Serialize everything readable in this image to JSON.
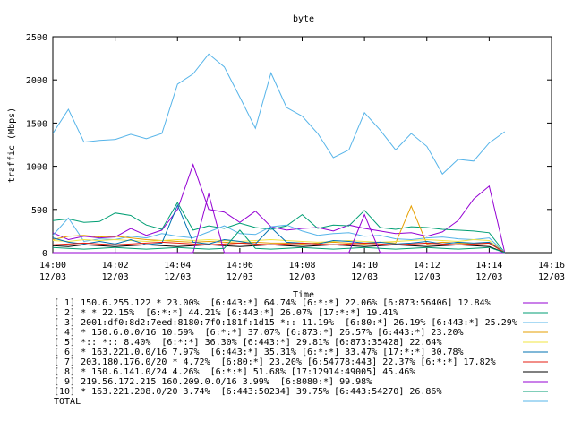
{
  "chart_data": {
    "type": "line",
    "title": "byte",
    "xlabel": "Time",
    "ylabel": "traffic (Mbps)",
    "ylim": [
      0,
      2500
    ],
    "xlim": [
      0,
      16
    ],
    "grid": false,
    "legend_position": "bottom",
    "y_ticks": [
      {
        "value": 0,
        "label": "0"
      },
      {
        "value": 500,
        "label": "500"
      },
      {
        "value": 1000,
        "label": "1000"
      },
      {
        "value": 1500,
        "label": "1500"
      },
      {
        "value": 2000,
        "label": "2000"
      },
      {
        "value": 2500,
        "label": "2500"
      }
    ],
    "x_ticks": [
      {
        "value": 0,
        "time": "14:00",
        "date": "12/03"
      },
      {
        "value": 2,
        "time": "14:02",
        "date": "12/03"
      },
      {
        "value": 4,
        "time": "14:04",
        "date": "12/03"
      },
      {
        "value": 6,
        "time": "14:06",
        "date": "12/03"
      },
      {
        "value": 8,
        "time": "14:08",
        "date": "12/03"
      },
      {
        "value": 10,
        "time": "14:10",
        "date": "12/03"
      },
      {
        "value": 12,
        "time": "14:12",
        "date": "12/03"
      },
      {
        "value": 14,
        "time": "14:14",
        "date": "12/03"
      },
      {
        "value": 16,
        "time": "14:16",
        "date": "12/03"
      }
    ],
    "x": [
      0,
      0.5,
      1,
      1.5,
      2,
      2.5,
      3,
      3.5,
      4,
      4.5,
      5,
      5.5,
      6,
      6.5,
      7,
      7.5,
      8,
      8.5,
      9,
      9.5,
      10,
      10.5,
      11,
      11.5,
      12,
      12.5,
      13,
      13.5,
      14,
      14.5
    ],
    "series": [
      {
        "name": "[ 1] 150.6.255.122 * 23.00%  [6:443:*] 64.74% [6:*:*] 22.06% [6:873:56406] 12.84%",
        "color": "#9400d3",
        "values": [
          230,
          150,
          190,
          170,
          180,
          280,
          200,
          260,
          500,
          1020,
          500,
          470,
          350,
          480,
          300,
          260,
          280,
          290,
          250,
          320,
          280,
          250,
          220,
          230,
          190,
          240,
          370,
          620,
          770,
          0
        ]
      },
      {
        "name": "[ 2] * * 22.15%  [6:*:*] 44.21% [6:443:*] 26.07% [17:*:*] 19.41%",
        "color": "#009e73",
        "values": [
          370,
          390,
          350,
          360,
          460,
          430,
          320,
          270,
          580,
          260,
          310,
          280,
          340,
          290,
          270,
          310,
          440,
          280,
          320,
          310,
          490,
          290,
          270,
          300,
          290,
          270,
          260,
          250,
          230,
          0
        ]
      },
      {
        "name": "[ 3] 2001:df0:8d2:7eed:8180:7f0:181f:1d15 *:: 11.19%  [6:80:*] 26.19% [6:443:*] 25.29%",
        "color": "#56b4e9",
        "values": [
          200,
          400,
          130,
          160,
          150,
          190,
          170,
          220,
          190,
          170,
          240,
          310,
          220,
          210,
          300,
          320,
          250,
          200,
          220,
          230,
          190,
          200,
          160,
          150,
          170,
          180,
          160,
          150,
          170,
          0
        ]
      },
      {
        "name": "[ 4] * 150.6.0.0/16 10.59%  [6:*:*] 37.07% [6:873:*] 26.57% [6:443:*] 23.20%",
        "color": "#e69f00",
        "values": [
          150,
          190,
          200,
          180,
          190,
          170,
          150,
          140,
          130,
          120,
          130,
          120,
          110,
          120,
          110,
          110,
          100,
          110,
          120,
          110,
          100,
          120,
          110,
          540,
          100,
          120,
          110,
          100,
          110,
          0
        ]
      },
      {
        "name": "[ 5] *:: *:: 8.40%  [6:*:*] 36.30% [6:443:*] 29.81% [6:873:35428] 22.64%",
        "color": "#f0e442",
        "values": [
          140,
          130,
          150,
          140,
          150,
          140,
          130,
          140,
          150,
          140,
          150,
          140,
          130,
          140,
          150,
          140,
          130,
          120,
          130,
          140,
          130,
          120,
          130,
          140,
          150,
          140,
          130,
          150,
          140,
          0
        ]
      },
      {
        "name": "[ 6] * 163.221.0.0/16 7.97%  [6:443:*] 35.31% [6:*:*] 33.47% [17:*:*] 30.78%",
        "color": "#0072b2",
        "values": [
          170,
          120,
          100,
          130,
          100,
          150,
          90,
          110,
          550,
          120,
          100,
          150,
          130,
          100,
          290,
          120,
          110,
          100,
          140,
          130,
          110,
          120,
          100,
          110,
          130,
          100,
          120,
          110,
          120,
          0
        ]
      },
      {
        "name": "[ 7] 203.180.176.0/20 * 4.72%  [6:80:*] 23.20% [6:54778:443] 22.37% [6:*:*] 17.82%",
        "color": "#e51e10",
        "values": [
          90,
          100,
          110,
          100,
          90,
          100,
          110,
          120,
          110,
          100,
          90,
          100,
          110,
          100,
          90,
          100,
          110,
          100,
          90,
          100,
          110,
          100,
          90,
          100,
          110,
          100,
          90,
          100,
          110,
          0
        ]
      },
      {
        "name": "[ 8] * 150.6.141.0/24 4.26%  [6:*:*] 51.68% [17:12914:49005] 45.46%",
        "color": "#000000",
        "values": [
          80,
          70,
          90,
          80,
          70,
          80,
          90,
          80,
          70,
          80,
          90,
          80,
          70,
          80,
          90,
          80,
          70,
          80,
          90,
          80,
          70,
          80,
          90,
          80,
          70,
          80,
          90,
          80,
          70,
          0
        ]
      },
      {
        "name": "[ 9] 219.56.172.215 160.209.0.0/16 3.99%  [6:8080:*] 99.98%",
        "color": "#9400d3",
        "values": [
          0,
          0,
          0,
          0,
          0,
          0,
          0,
          0,
          0,
          0,
          680,
          0,
          0,
          0,
          0,
          0,
          0,
          0,
          0,
          0,
          440,
          0,
          0,
          0,
          0,
          0,
          0,
          0,
          0,
          0
        ]
      },
      {
        "name": "[10] * 163.221.208.0/20 3.74%  [6:443:50234] 39.75% [6:443:54270] 26.86%",
        "color": "#009e73",
        "values": [
          60,
          50,
          40,
          50,
          60,
          50,
          40,
          50,
          60,
          50,
          40,
          50,
          260,
          50,
          40,
          50,
          60,
          50,
          40,
          50,
          60,
          50,
          40,
          50,
          60,
          50,
          40,
          50,
          60,
          0
        ]
      },
      {
        "name": "TOTAL",
        "color": "#56b4e9",
        "values": [
          1380,
          1660,
          1280,
          1300,
          1310,
          1370,
          1320,
          1380,
          1950,
          2070,
          2300,
          2150,
          1800,
          1440,
          2080,
          1680,
          1580,
          1380,
          1100,
          1190,
          1620,
          1420,
          1190,
          1380,
          1230,
          910,
          1080,
          1060,
          1270,
          1400
        ]
      }
    ]
  }
}
